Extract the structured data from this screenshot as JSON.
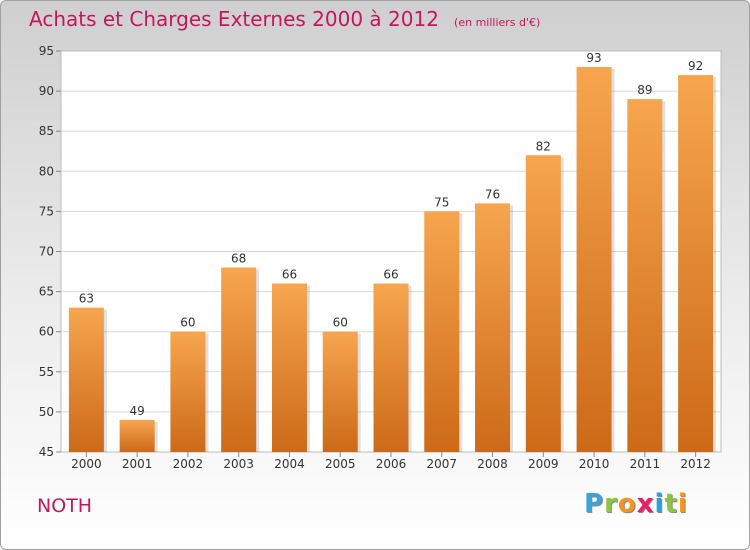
{
  "header": {
    "title": "Achats et Charges Externes 2000 à 2012",
    "unit": "(en milliers d'€)"
  },
  "footer": {
    "commune": "NOTH",
    "logo_letters": [
      "P",
      "r",
      "o",
      "x",
      "i",
      "t",
      "i"
    ],
    "logo_colors": [
      "#3aa3d8",
      "#8cc63f",
      "#f7941d",
      "#e91e63",
      "#2e9fd8",
      "#8cc63f",
      "#f7941d"
    ]
  },
  "chart_data": {
    "type": "bar",
    "title": "Achats et Charges Externes 2000 à 2012",
    "categories": [
      "2000",
      "2001",
      "2002",
      "2003",
      "2004",
      "2005",
      "2006",
      "2007",
      "2008",
      "2009",
      "2010",
      "2011",
      "2012"
    ],
    "values": [
      63,
      49,
      60,
      68,
      66,
      60,
      66,
      75,
      76,
      82,
      93,
      89,
      92
    ],
    "data_labels": [
      "63",
      "49",
      "60",
      "68",
      "66",
      "60",
      "66",
      "75",
      "76",
      "82",
      "93",
      "89",
      "92"
    ],
    "ylim": [
      45,
      95
    ],
    "yticks": [
      45,
      50,
      55,
      60,
      65,
      70,
      75,
      80,
      85,
      90,
      95
    ],
    "ytick_labels": [
      "45",
      "50",
      "55",
      "60",
      "65",
      "70",
      "75",
      "80",
      "85",
      "90",
      "95"
    ],
    "grid": true,
    "bar_color_top": "#f7a54f",
    "bar_color_bottom": "#cc6a18",
    "xlabel": "",
    "ylabel": ""
  }
}
